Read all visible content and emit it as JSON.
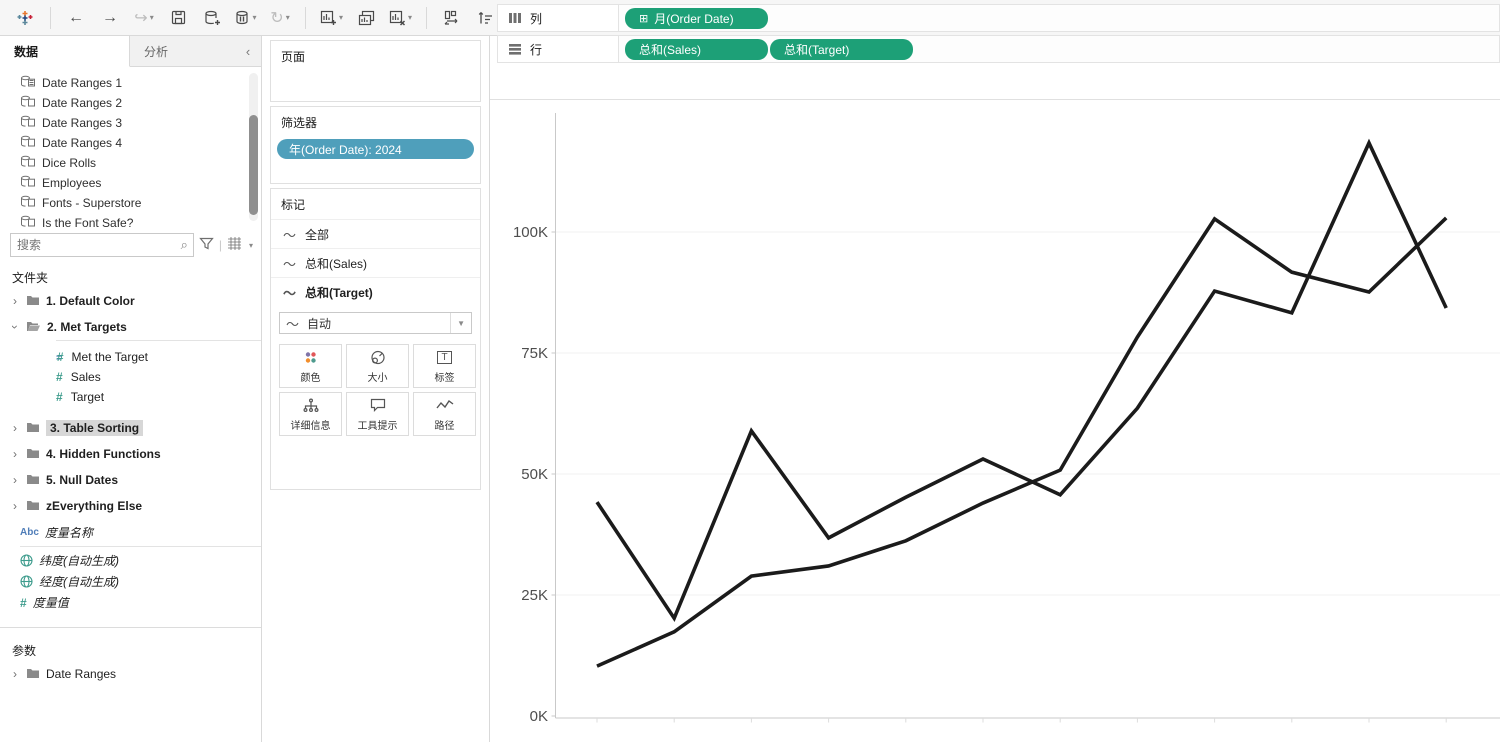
{
  "toolbar": {
    "fit_label": "标准",
    "show_me_label": "智能显示"
  },
  "sidebar": {
    "tabs": {
      "data": "数据",
      "analytics": "分析",
      "collapse": "‹"
    },
    "sources": [
      "Date Ranges 1",
      "Date Ranges 2",
      "Date Ranges 3",
      "Date Ranges 4",
      "Dice Rolls",
      "Employees",
      "Fonts - Superstore",
      "Is the Font Safe?"
    ],
    "search_placeholder": "搜索",
    "folders_label": "文件夹",
    "folders": {
      "f1": "1. Default Color",
      "f2": "2. Met Targets",
      "f2_fields": [
        "Met the Target",
        "Sales",
        "Target"
      ],
      "f3": "3. Table Sorting",
      "f4": "4. Hidden Functions",
      "f5": "5. Null Dates",
      "f6": "zEverything Else"
    },
    "generated_fields": {
      "measure_names": "度量名称",
      "latitude": "纬度(自动生成)",
      "longitude": "经度(自动生成)",
      "measure_values": "度量值"
    },
    "parameters_label": "参数",
    "parameter_folder": "Date Ranges"
  },
  "cards": {
    "pages_label": "页面",
    "filters_label": "筛选器",
    "filter_pill": "年(Order Date): 2024",
    "marks_label": "标记",
    "marks_rows": [
      "全部",
      "总和(Sales)",
      "总和(Target)"
    ],
    "mark_type": "自动",
    "buttons": [
      {
        "label": "颜色"
      },
      {
        "label": "大小"
      },
      {
        "label": "标签"
      },
      {
        "label": "详细信息"
      },
      {
        "label": "工具提示"
      },
      {
        "label": "路径"
      }
    ]
  },
  "shelves": {
    "columns_label": "列",
    "rows_label": "行",
    "columns_pills": [
      "月(Order Date)"
    ],
    "rows_pills": [
      "总和(Sales)",
      "总和(Target)"
    ]
  },
  "chart_data": {
    "type": "line",
    "x": [
      1,
      2,
      3,
      4,
      5,
      6,
      7,
      8,
      9,
      10,
      11,
      12
    ],
    "x_axis_labels_visible": false,
    "categories_note": "months of Order Date, year 2024",
    "series": [
      {
        "name": "总和(Sales)",
        "values": [
          44.2,
          20.2,
          58.9,
          36.8,
          45.2,
          53.1,
          45.7,
          63.6,
          87.8,
          83.3,
          118.4,
          84.3
        ]
      },
      {
        "name": "总和(Target)",
        "values": [
          10.3,
          17.4,
          28.9,
          31.0,
          36.2,
          44.0,
          50.8,
          78.3,
          102.7,
          91.7,
          87.6,
          102.9
        ]
      }
    ],
    "unit": "K",
    "y_ticks": [
      0,
      25,
      50,
      75,
      100
    ],
    "y_tick_labels": [
      "0K",
      "25K",
      "50K",
      "75K",
      "100K"
    ],
    "ylim": [
      0,
      125
    ],
    "grid": true,
    "legend": "none",
    "line_color": "#1b1b1b"
  },
  "colors": {
    "pill_green": "#1da077",
    "pill_blue": "#4f9fbb",
    "measure_teal": "#3e9c8d",
    "dimension_blue": "#4f7db8"
  }
}
